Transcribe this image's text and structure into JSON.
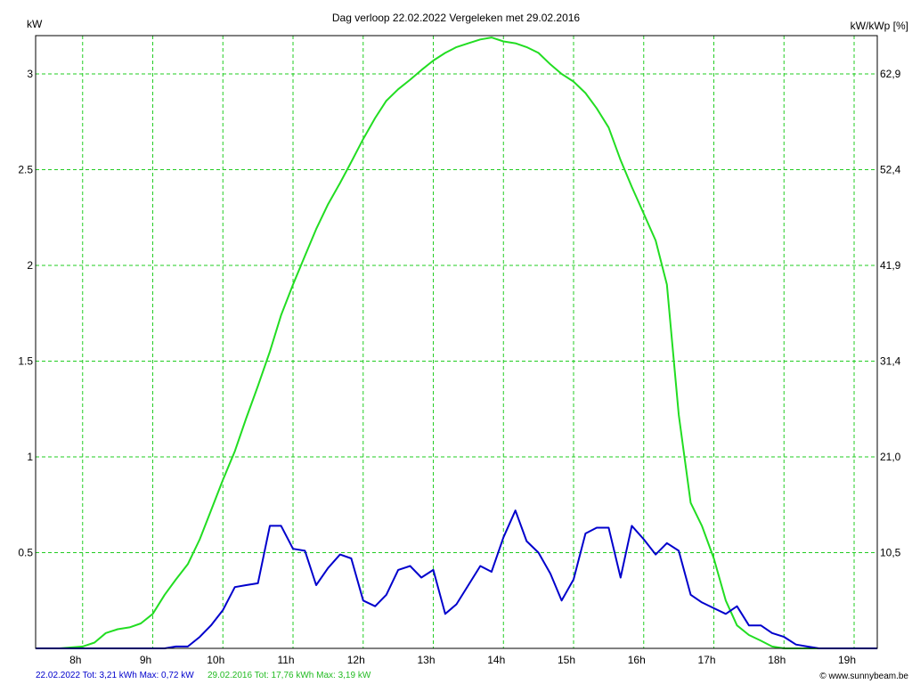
{
  "chart_data": {
    "type": "line",
    "title": "Dag  verloop 22.02.2022   Vergeleken met 29.02.2016",
    "y_left_label": "kW",
    "y_right_label": "kW/kWp [%]",
    "y_left_ticks": [
      "0.5",
      "1",
      "1.5",
      "2",
      "2.5",
      "3"
    ],
    "y_right_ticks": [
      "10,5",
      "21,0",
      "31,4",
      "41,9",
      "52,4",
      "62,9"
    ],
    "x_ticks": [
      "8h",
      "9h",
      "10h",
      "11h",
      "12h",
      "13h",
      "14h",
      "15h",
      "16h",
      "17h",
      "18h",
      "19h"
    ],
    "x_unit": "hour",
    "xlim": [
      7.33,
      19.33
    ],
    "ylim": [
      0,
      3.2
    ],
    "grid": true,
    "series": [
      {
        "name": "29.02.2016",
        "color": "#22dd22",
        "x": [
          7.33,
          7.67,
          8.0,
          8.17,
          8.33,
          8.5,
          8.67,
          8.83,
          9.0,
          9.17,
          9.33,
          9.5,
          9.67,
          9.83,
          10.0,
          10.17,
          10.33,
          10.5,
          10.67,
          10.83,
          11.0,
          11.17,
          11.33,
          11.5,
          11.67,
          11.83,
          12.0,
          12.17,
          12.33,
          12.5,
          12.67,
          12.83,
          13.0,
          13.17,
          13.33,
          13.5,
          13.67,
          13.83,
          14.0,
          14.17,
          14.33,
          14.5,
          14.67,
          14.83,
          15.0,
          15.17,
          15.33,
          15.5,
          15.67,
          15.83,
          16.0,
          16.17,
          16.33,
          16.5,
          16.67,
          16.83,
          17.0,
          17.17,
          17.33,
          17.5,
          17.67,
          17.83,
          18.0,
          18.17,
          18.33,
          18.5,
          19.33
        ],
        "y": [
          0.0,
          0.0,
          0.01,
          0.03,
          0.08,
          0.1,
          0.11,
          0.13,
          0.18,
          0.28,
          0.36,
          0.44,
          0.57,
          0.72,
          0.88,
          1.03,
          1.2,
          1.37,
          1.55,
          1.74,
          1.9,
          2.05,
          2.19,
          2.32,
          2.43,
          2.54,
          2.66,
          2.77,
          2.86,
          2.92,
          2.97,
          3.02,
          3.07,
          3.11,
          3.14,
          3.16,
          3.18,
          3.19,
          3.17,
          3.16,
          3.14,
          3.11,
          3.05,
          3.0,
          2.96,
          2.9,
          2.82,
          2.72,
          2.55,
          2.41,
          2.27,
          2.13,
          1.9,
          1.22,
          0.76,
          0.64,
          0.47,
          0.25,
          0.12,
          0.07,
          0.04,
          0.01,
          0.0,
          0.0,
          0.0,
          0.0,
          0.0
        ]
      },
      {
        "name": "22.02.2022",
        "color": "#0000cc",
        "x": [
          7.33,
          9.0,
          9.17,
          9.33,
          9.5,
          9.67,
          9.83,
          10.0,
          10.17,
          10.33,
          10.5,
          10.67,
          10.83,
          11.0,
          11.17,
          11.33,
          11.5,
          11.67,
          11.83,
          12.0,
          12.17,
          12.33,
          12.5,
          12.67,
          12.83,
          13.0,
          13.17,
          13.33,
          13.5,
          13.67,
          13.83,
          14.0,
          14.17,
          14.33,
          14.5,
          14.67,
          14.83,
          15.0,
          15.17,
          15.33,
          15.5,
          15.67,
          15.83,
          16.0,
          16.17,
          16.33,
          16.5,
          16.67,
          16.83,
          17.0,
          17.17,
          17.33,
          17.5,
          17.67,
          17.83,
          18.0,
          18.17,
          18.33,
          18.5,
          19.33
        ],
        "y": [
          0.0,
          0.0,
          0.0,
          0.01,
          0.01,
          0.06,
          0.12,
          0.2,
          0.32,
          0.33,
          0.34,
          0.64,
          0.64,
          0.52,
          0.51,
          0.33,
          0.42,
          0.49,
          0.47,
          0.25,
          0.22,
          0.28,
          0.41,
          0.43,
          0.37,
          0.41,
          0.18,
          0.23,
          0.33,
          0.43,
          0.4,
          0.58,
          0.72,
          0.56,
          0.5,
          0.39,
          0.25,
          0.36,
          0.6,
          0.63,
          0.63,
          0.37,
          0.64,
          0.57,
          0.49,
          0.55,
          0.51,
          0.28,
          0.24,
          0.21,
          0.18,
          0.22,
          0.12,
          0.12,
          0.08,
          0.06,
          0.02,
          0.01,
          0.0,
          0.0
        ]
      }
    ],
    "footer": {
      "blue_label": "22.02.2022 Tot: 3,21 kWh Max: 0,72 kW",
      "green_label": "29.02.2016 Tot: 17,76 kWh Max: 3,19 kW",
      "copyright": "© www.sunnybeam.be"
    }
  }
}
